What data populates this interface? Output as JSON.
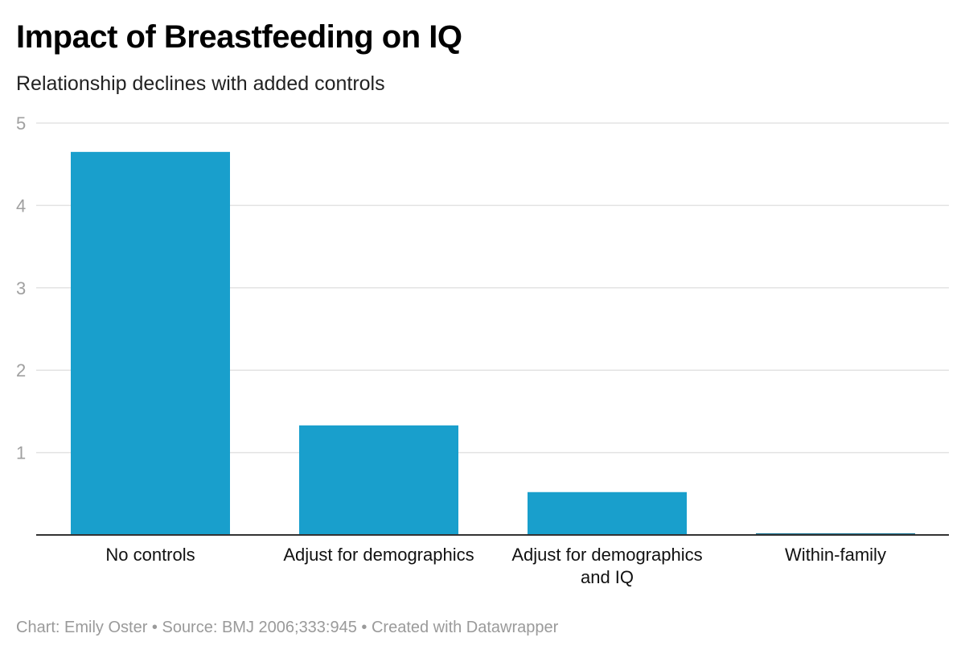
{
  "chart_data": {
    "type": "bar",
    "title": "Impact of Breastfeeding on IQ",
    "subtitle": "Relationship declines with added controls",
    "categories": [
      [
        "No controls"
      ],
      [
        "Adjust for demographics"
      ],
      [
        "Adjust for demographics",
        "and IQ"
      ],
      [
        "Within-family"
      ]
    ],
    "values": [
      4.65,
      1.33,
      0.52,
      0.02
    ],
    "ylim": [
      0,
      5
    ],
    "yticks": [
      1,
      2,
      3,
      4,
      5
    ],
    "ytick_labels": [
      "1",
      "2",
      "3",
      "4",
      "5"
    ],
    "grid": true,
    "xlabel": "",
    "ylabel": "",
    "colors": {
      "bar": "#199fcc",
      "bar_small": "#136f8f",
      "grid": "#e3e3e3",
      "baseline": "#333333"
    }
  },
  "footer": {
    "text": "Chart: Emily Oster • Source: BMJ 2006;333:945 • Created with Datawrapper"
  }
}
